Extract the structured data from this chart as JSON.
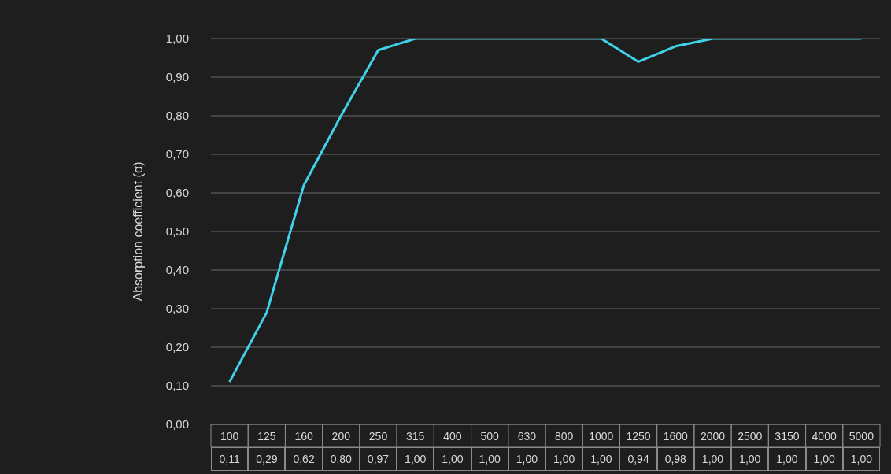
{
  "chart_data": {
    "type": "line",
    "ylabel": "Absorption coefficient (α)",
    "categories": [
      "100",
      "125",
      "160",
      "200",
      "250",
      "315",
      "400",
      "500",
      "630",
      "800",
      "1000",
      "1250",
      "1600",
      "2000",
      "2500",
      "3150",
      "4000",
      "5000"
    ],
    "series": [
      {
        "color": "#3fd2ea",
        "values": [
          0.11,
          0.29,
          0.62,
          0.8,
          0.97,
          1.0,
          1.0,
          1.0,
          1.0,
          1.0,
          1.0,
          0.94,
          0.98,
          1.0,
          1.0,
          1.0,
          1.0,
          1.0
        ],
        "value_labels": [
          "0,11",
          "0,29",
          "0,62",
          "0,80",
          "0,97",
          "1,00",
          "1,00",
          "1,00",
          "1,00",
          "1,00",
          "1,00",
          "0,94",
          "0,98",
          "1,00",
          "1,00",
          "1,00",
          "1,00",
          "1,00"
        ]
      }
    ],
    "ylim": [
      0,
      1
    ],
    "yticks": [
      {
        "value": 0,
        "label": "0,00"
      },
      {
        "value": 0.1,
        "label": "0,10"
      },
      {
        "value": 0.2,
        "label": "0,20"
      },
      {
        "value": 0.3,
        "label": "0,30"
      },
      {
        "value": 0.4,
        "label": "0,40"
      },
      {
        "value": 0.5,
        "label": "0,50"
      },
      {
        "value": 0.6,
        "label": "0,60"
      },
      {
        "value": 0.7,
        "label": "0,70"
      },
      {
        "value": 0.8,
        "label": "0,80"
      },
      {
        "value": 0.9,
        "label": "0,90"
      },
      {
        "value": 1,
        "label": "1,00"
      }
    ],
    "grid": "y",
    "marker": "none",
    "line_style": "solid",
    "legend": false
  }
}
